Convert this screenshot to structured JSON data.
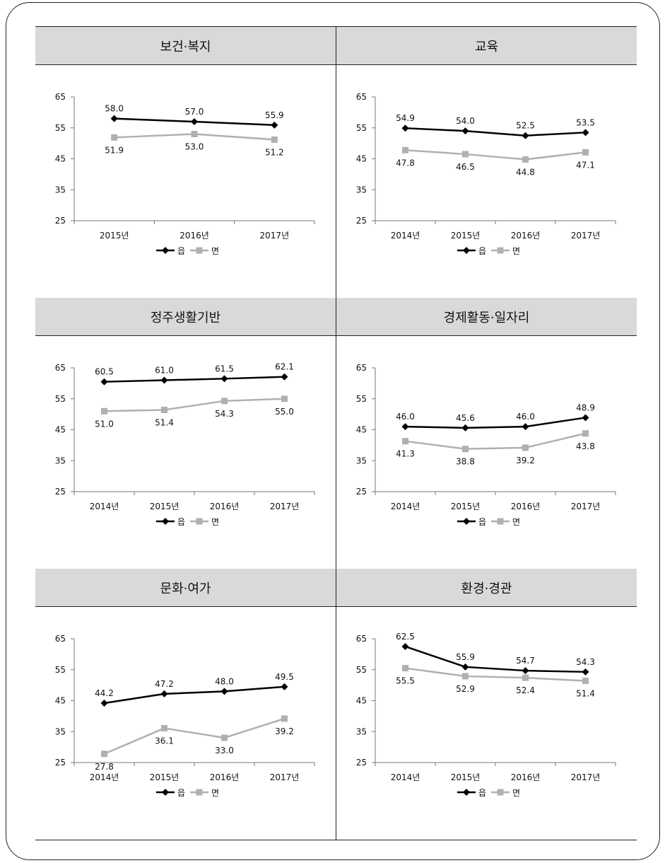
{
  "legend": {
    "series": [
      "읍",
      "면"
    ]
  },
  "colors": {
    "eup": "#000000",
    "myeon": "#b0b0b0"
  },
  "chart_data": [
    {
      "type": "line",
      "title": "보건·복지",
      "x": [
        "2015년",
        "2016년",
        "2017년"
      ],
      "yticks": [
        "65",
        "55",
        "45",
        "35",
        "25"
      ],
      "ylim": [
        25,
        65
      ],
      "series": [
        {
          "name": "읍",
          "values": [
            58.0,
            57.0,
            55.9
          ],
          "labels": [
            "58.0",
            "57.0",
            "55.9"
          ]
        },
        {
          "name": "면",
          "values": [
            51.9,
            53.0,
            51.2
          ],
          "labels": [
            "51.9",
            "53.0",
            "51.2"
          ]
        }
      ]
    },
    {
      "type": "line",
      "title": "교육",
      "x": [
        "2014년",
        "2015년",
        "2016년",
        "2017년"
      ],
      "yticks": [
        "65",
        "55",
        "45",
        "35",
        "25"
      ],
      "ylim": [
        25,
        65
      ],
      "series": [
        {
          "name": "읍",
          "values": [
            54.9,
            54.0,
            52.5,
            53.5
          ],
          "labels": [
            "54.9",
            "54.0",
            "52.5",
            "53.5"
          ]
        },
        {
          "name": "면",
          "values": [
            47.8,
            46.5,
            44.8,
            47.1
          ],
          "labels": [
            "47.8",
            "46.5",
            "44.8",
            "47.1"
          ]
        }
      ]
    },
    {
      "type": "line",
      "title": "정주생활기반",
      "x": [
        "2014년",
        "2015년",
        "2016년",
        "2017년"
      ],
      "yticks": [
        "65",
        "55",
        "45",
        "35",
        "25"
      ],
      "ylim": [
        25,
        65
      ],
      "series": [
        {
          "name": "읍",
          "values": [
            60.5,
            61.0,
            61.5,
            62.1
          ],
          "labels": [
            "60.5",
            "61.0",
            "61.5",
            "62.1"
          ]
        },
        {
          "name": "면",
          "values": [
            51.0,
            51.4,
            54.3,
            55.0
          ],
          "labels": [
            "51.0",
            "51.4",
            "54.3",
            "55.0"
          ]
        }
      ]
    },
    {
      "type": "line",
      "title": "경제활동·일자리",
      "x": [
        "2014년",
        "2015년",
        "2016년",
        "2017년"
      ],
      "yticks": [
        "65",
        "55",
        "45",
        "35",
        "25"
      ],
      "ylim": [
        25,
        65
      ],
      "series": [
        {
          "name": "읍",
          "values": [
            46.0,
            45.6,
            46.0,
            48.9
          ],
          "labels": [
            "46.0",
            "45.6",
            "46.0",
            "48.9"
          ]
        },
        {
          "name": "면",
          "values": [
            41.3,
            38.8,
            39.2,
            43.8
          ],
          "labels": [
            "41.3",
            "38.8",
            "39.2",
            "43.8"
          ]
        }
      ]
    },
    {
      "type": "line",
      "title": "문화·여가",
      "x": [
        "2014년",
        "2015년",
        "2016년",
        "2017년"
      ],
      "yticks": [
        "65",
        "55",
        "45",
        "35",
        "25"
      ],
      "ylim": [
        25,
        65
      ],
      "series": [
        {
          "name": "읍",
          "values": [
            44.2,
            47.2,
            48.0,
            49.5
          ],
          "labels": [
            "44.2",
            "47.2",
            "48.0",
            "49.5"
          ]
        },
        {
          "name": "면",
          "values": [
            27.8,
            36.1,
            33.0,
            39.2
          ],
          "labels": [
            "27.8",
            "36.1",
            "33.0",
            "39.2"
          ]
        }
      ]
    },
    {
      "type": "line",
      "title": "환경·경관",
      "x": [
        "2014년",
        "2015년",
        "2016년",
        "2017년"
      ],
      "yticks": [
        "65",
        "55",
        "45",
        "35",
        "25"
      ],
      "ylim": [
        25,
        65
      ],
      "series": [
        {
          "name": "읍",
          "values": [
            62.5,
            55.9,
            54.7,
            54.3
          ],
          "labels": [
            "62.5",
            "55.9",
            "54.7",
            "54.3"
          ]
        },
        {
          "name": "면",
          "values": [
            55.5,
            52.9,
            52.4,
            51.4
          ],
          "labels": [
            "55.5",
            "52.9",
            "52.4",
            "51.4"
          ]
        }
      ]
    }
  ]
}
